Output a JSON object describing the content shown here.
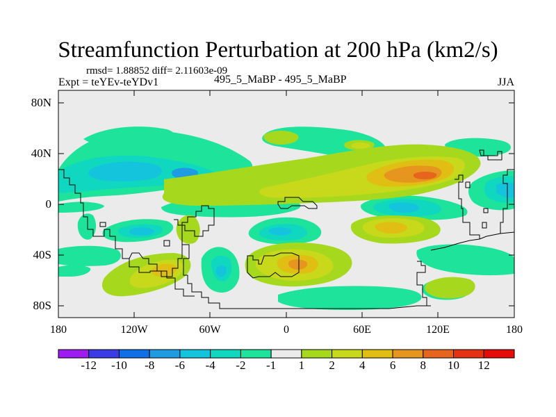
{
  "title": "Streamfunction Perturbation at 200 hPa (km2/s)",
  "stats": {
    "rmsd_label": "rmsd= 1.88852",
    "diff_label": "diff= 2.11603e-09"
  },
  "expt_label": "Expt = teYEv-teYDv1",
  "case_label": "495_5_MaBP - 495_5_MaBP",
  "season": "JJA",
  "axes": {
    "y_ticks": [
      "80N",
      "40N",
      "0",
      "40S",
      "80S"
    ],
    "x_ticks": [
      "180",
      "120W",
      "60W",
      "0",
      "60E",
      "120E",
      "180"
    ]
  },
  "colorbar": {
    "labels": [
      "-12",
      "-10",
      "-8",
      "-6",
      "-4",
      "-2",
      "-1",
      "1",
      "2",
      "4",
      "6",
      "8",
      "10",
      "12"
    ],
    "colors": [
      "#9d1cf0",
      "#3c3ce6",
      "#0f6fe6",
      "#1e9be1",
      "#14c3dc",
      "#10d7c0",
      "#1ee39b",
      "#ebebeb",
      "#a6d91e",
      "#c8d81a",
      "#e0be14",
      "#e6961e",
      "#e6641e",
      "#e63214",
      "#e60a0a"
    ]
  },
  "colors": {
    "background_field": "#ebebeb",
    "coastline": "#000000"
  }
}
